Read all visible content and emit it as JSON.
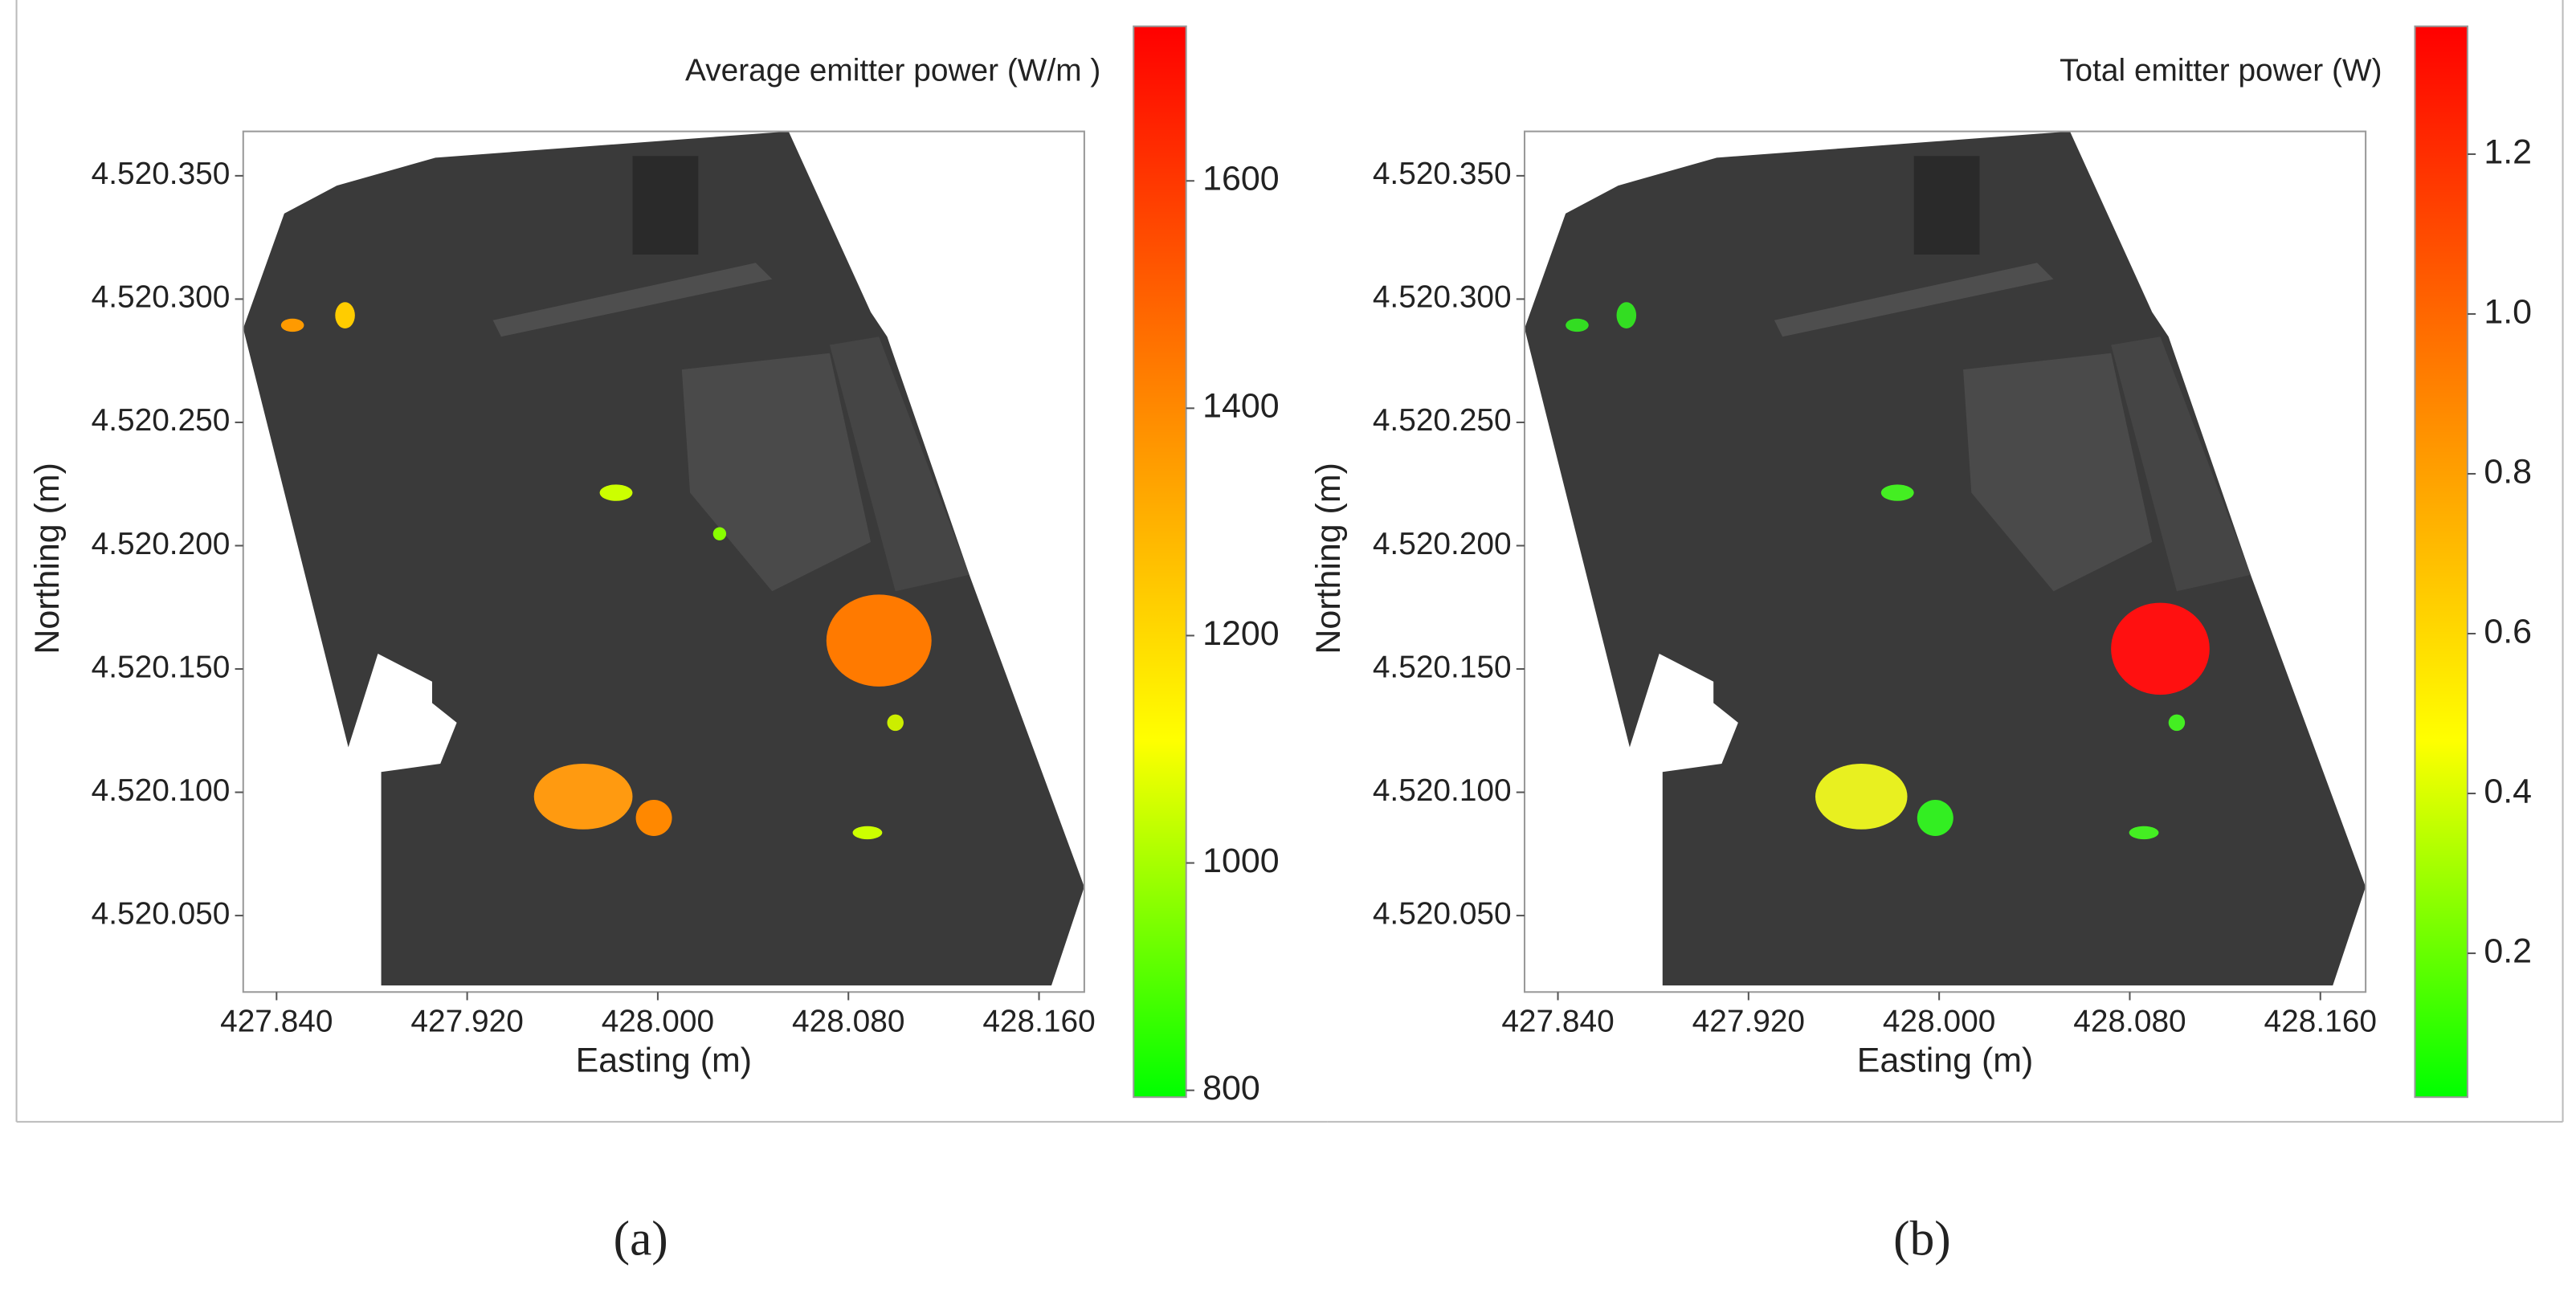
{
  "chart_data": [
    {
      "type": "map",
      "panel_label": "(a)",
      "xlabel": "Easting (m)",
      "ylabel": "Northing (m)",
      "xlim": [
        427826,
        428179
      ],
      "xticks": [
        {
          "value": 427840,
          "label": "427.840"
        },
        {
          "value": 427920,
          "label": "427.920"
        },
        {
          "value": 428000,
          "label": "428.000"
        },
        {
          "value": 428080,
          "label": "428.080"
        },
        {
          "value": 428160,
          "label": "428.160"
        }
      ],
      "ylim": [
        4520019,
        4520368
      ],
      "yticks": [
        {
          "value": 4520050,
          "label": "4.520.050"
        },
        {
          "value": 4520100,
          "label": "4.520.100"
        },
        {
          "value": 4520150,
          "label": "4.520.150"
        },
        {
          "value": 4520200,
          "label": "4.520.200"
        },
        {
          "value": 4520250,
          "label": "4.520.250"
        },
        {
          "value": 4520300,
          "label": "4.520.300"
        },
        {
          "value": 4520350,
          "label": "4.520.350"
        }
      ],
      "colorbar": {
        "title": "Average emitter power (W/m )",
        "lim": [
          794,
          1736
        ],
        "ticks": [
          800,
          1000,
          1200,
          1400,
          1600
        ],
        "colors": [
          "#00ff00",
          "#ffff00",
          "#ff8000",
          "#ff0000"
        ]
      }
    },
    {
      "type": "map",
      "panel_label": "(b)",
      "xlabel": "Easting (m)",
      "ylabel": "Northing (m)",
      "xlim": [
        427826,
        428179
      ],
      "xticks": [
        {
          "value": 427840,
          "label": "427.840"
        },
        {
          "value": 427920,
          "label": "427.920"
        },
        {
          "value": 428000,
          "label": "428.000"
        },
        {
          "value": 428080,
          "label": "428.080"
        },
        {
          "value": 428160,
          "label": "428.160"
        }
      ],
      "ylim": [
        4520019,
        4520368
      ],
      "yticks": [
        {
          "value": 4520050,
          "label": "4.520.050"
        },
        {
          "value": 4520100,
          "label": "4.520.100"
        },
        {
          "value": 4520150,
          "label": "4.520.150"
        },
        {
          "value": 4520200,
          "label": "4.520.200"
        },
        {
          "value": 4520250,
          "label": "4.520.250"
        },
        {
          "value": 4520300,
          "label": "4.520.300"
        },
        {
          "value": 4520350,
          "label": "4.520.350"
        }
      ],
      "colorbar": {
        "title": "Total emitter power (W)",
        "lim": [
          0.02,
          1.36
        ],
        "ticks": [
          0.2,
          0.4,
          0.6,
          0.8,
          {
            "value": 1,
            "label": "1.0"
          },
          1.2
        ],
        "colors": [
          "#00ff00",
          "#ffff00",
          "#ff8000",
          "#ff0000"
        ]
      }
    }
  ]
}
